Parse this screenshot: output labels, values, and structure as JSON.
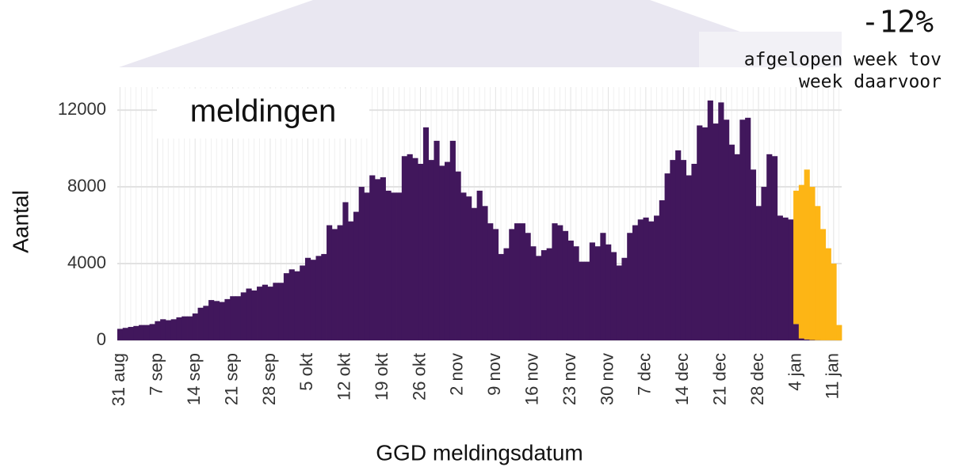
{
  "chart_data": {
    "type": "bar",
    "stacked": true,
    "title": "meldingen",
    "xlabel": "GGD meldingsdatum",
    "ylabel": "Aantal",
    "annotation": {
      "change": "-12%",
      "lines": [
        "afgelopen week tov",
        "week daarvoor"
      ]
    },
    "grid": true,
    "ylim": [
      0,
      13200
    ],
    "yticks": [
      0,
      4000,
      8000,
      12000
    ],
    "categories": [
      "31 aug",
      null,
      null,
      null,
      null,
      null,
      null,
      "7 sep",
      null,
      null,
      null,
      null,
      null,
      null,
      "14 sep",
      null,
      null,
      null,
      null,
      null,
      null,
      "21 sep",
      null,
      null,
      null,
      null,
      null,
      null,
      "28 sep",
      null,
      null,
      null,
      null,
      null,
      null,
      "5 okt",
      null,
      null,
      null,
      null,
      null,
      null,
      "12 okt",
      null,
      null,
      null,
      null,
      null,
      null,
      "19 okt",
      null,
      null,
      null,
      null,
      null,
      null,
      "26 okt",
      null,
      null,
      null,
      null,
      null,
      null,
      "2 nov",
      null,
      null,
      null,
      null,
      null,
      null,
      "9 nov",
      null,
      null,
      null,
      null,
      null,
      null,
      "16 nov",
      null,
      null,
      null,
      null,
      null,
      null,
      "23 nov",
      null,
      null,
      null,
      null,
      null,
      null,
      "30 nov",
      null,
      null,
      null,
      null,
      null,
      null,
      "7 dec",
      null,
      null,
      null,
      null,
      null,
      null,
      "14 dec",
      null,
      null,
      null,
      null,
      null,
      null,
      "21 dec",
      null,
      null,
      null,
      null,
      null,
      null,
      "28 dec",
      null,
      null,
      null,
      null,
      null,
      null,
      "4 jan",
      null,
      null,
      null,
      null,
      null,
      null,
      "11 jan",
      null
    ],
    "series": [
      {
        "color": "#41175c",
        "values": [
          600,
          650,
          700,
          750,
          800,
          800,
          850,
          1000,
          1100,
          1050,
          1100,
          1200,
          1250,
          1250,
          1400,
          1700,
          1800,
          2100,
          2050,
          2000,
          2150,
          2300,
          2300,
          2500,
          2700,
          2600,
          2800,
          2900,
          2800,
          3000,
          3000,
          3500,
          3700,
          3600,
          3900,
          4300,
          4200,
          4400,
          4500,
          6000,
          5800,
          6000,
          7200,
          6200,
          6700,
          8000,
          7700,
          8600,
          8400,
          8500,
          7800,
          7700,
          7700,
          9600,
          9700,
          9500,
          9200,
          11100,
          9400,
          10400,
          9100,
          9300,
          10400,
          8800,
          7700,
          7500,
          6900,
          7800,
          7000,
          6100,
          5800,
          4500,
          4800,
          5800,
          6100,
          6100,
          5600,
          4900,
          4400,
          4700,
          4800,
          6100,
          6000,
          5700,
          5200,
          4900,
          4100,
          4100,
          5100,
          4900,
          5600,
          5000,
          4600,
          3900,
          4300,
          5600,
          6000,
          6300,
          6400,
          6200,
          6500,
          7300,
          8700,
          9400,
          9900,
          9400,
          8600,
          9200,
          11200,
          11100,
          12500,
          11300,
          12400,
          11500,
          10200,
          9700,
          11500,
          11600,
          8900,
          7000,
          8000,
          9700,
          9600,
          6500,
          6400,
          6300,
          850,
          100,
          50,
          20,
          10,
          5,
          5,
          5,
          0
        ]
      },
      {
        "color": "#fdb515",
        "values": [
          0,
          0,
          0,
          0,
          0,
          0,
          0,
          0,
          0,
          0,
          0,
          0,
          0,
          0,
          0,
          0,
          0,
          0,
          0,
          0,
          0,
          0,
          0,
          0,
          0,
          0,
          0,
          0,
          0,
          0,
          0,
          0,
          0,
          0,
          0,
          0,
          0,
          0,
          0,
          0,
          0,
          0,
          0,
          0,
          0,
          0,
          0,
          0,
          0,
          0,
          0,
          0,
          0,
          0,
          0,
          0,
          0,
          0,
          0,
          0,
          0,
          0,
          0,
          0,
          0,
          0,
          0,
          0,
          0,
          0,
          0,
          0,
          0,
          0,
          0,
          0,
          0,
          0,
          0,
          0,
          0,
          0,
          0,
          0,
          0,
          0,
          0,
          0,
          0,
          0,
          0,
          0,
          0,
          0,
          0,
          0,
          0,
          0,
          0,
          0,
          0,
          0,
          0,
          0,
          0,
          0,
          0,
          0,
          0,
          0,
          0,
          0,
          0,
          0,
          0,
          0,
          0,
          0,
          0,
          0,
          0,
          0,
          0,
          0,
          0,
          0,
          6950,
          8000,
          8850,
          7980,
          6990,
          5795,
          4795,
          3995,
          800
        ]
      }
    ]
  }
}
